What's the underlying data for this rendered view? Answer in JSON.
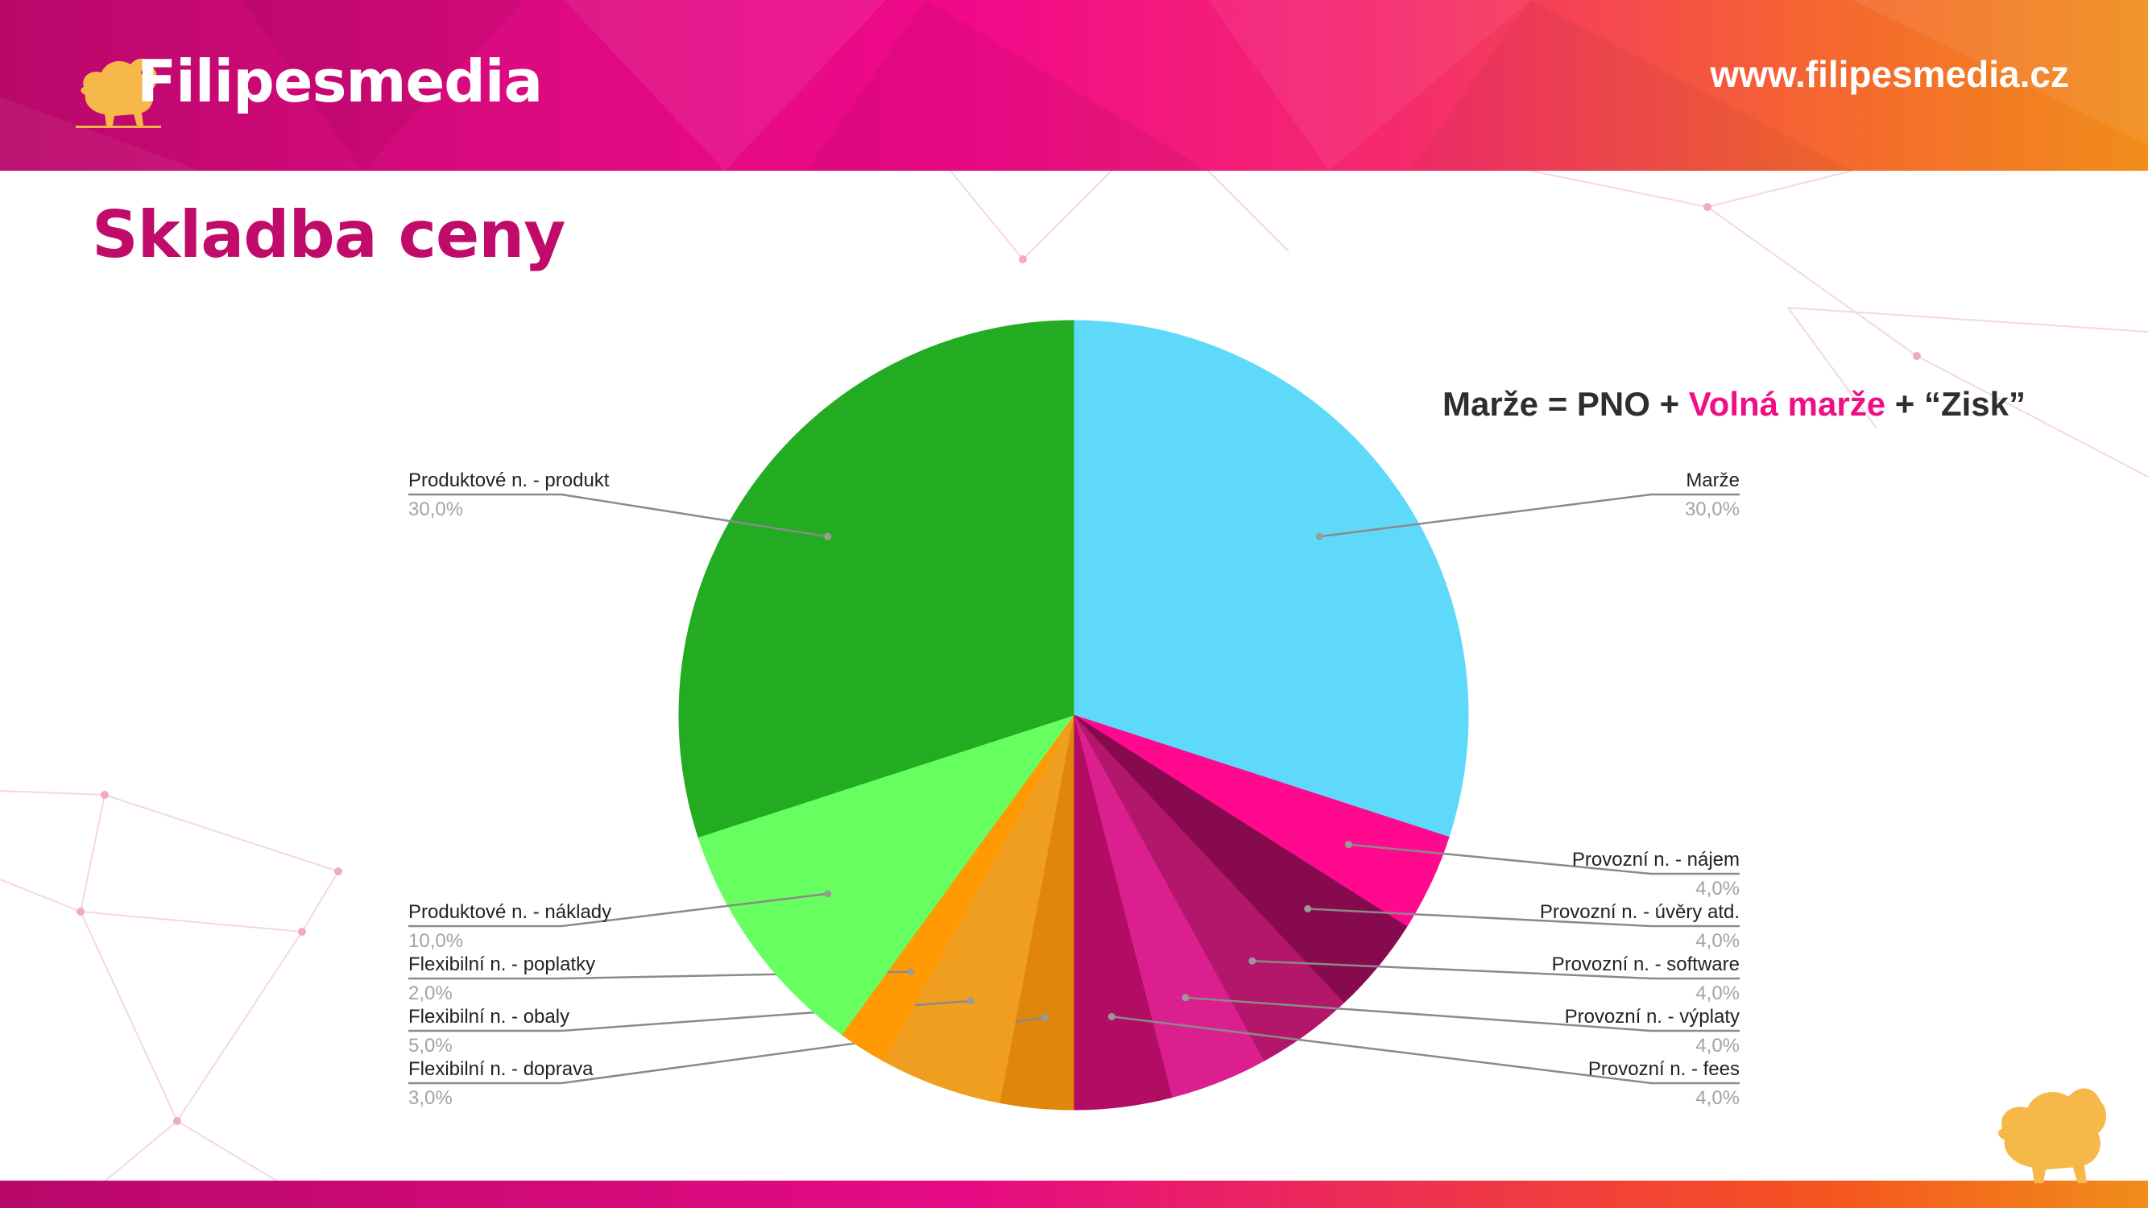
{
  "header": {
    "brand": "Filipesmedia",
    "url": "www.filipesmedia.cz",
    "logo_icon": "pomeranian-dog-icon"
  },
  "page": {
    "title": "Skladba ceny"
  },
  "formula": {
    "part1": "Marže = PNO + ",
    "part2": "Volná marže",
    "part3": " + “Zisk”",
    "highlight_color": "#ee0f86"
  },
  "corner_icon": "pomeranian-dog-icon",
  "chart_data": {
    "type": "pie",
    "start": "top, clockwise",
    "slices": [
      {
        "label": "Marže",
        "value": 30,
        "value_label": "30,0%",
        "color": "#5fd9fa"
      },
      {
        "label": "Provozní n. - nájem",
        "value": 4,
        "value_label": "4,0%",
        "color": "#ff0a8f"
      },
      {
        "label": "Provozní n. - úvěry atd.",
        "value": 4,
        "value_label": "4,0%",
        "color": "#870a4f"
      },
      {
        "label": "Provozní n. - software",
        "value": 4,
        "value_label": "4,0%",
        "color": "#b3176b"
      },
      {
        "label": "Provozní n. - výplaty",
        "value": 4,
        "value_label": "4,0%",
        "color": "#dc1f8f"
      },
      {
        "label": "Provozní n. - fees",
        "value": 4,
        "value_label": "4,0%",
        "color": "#b00d63"
      },
      {
        "label": "Flexibilní n. - doprava",
        "value": 3,
        "value_label": "3,0%",
        "color": "#e0860b"
      },
      {
        "label": "Flexibilní n. - obaly",
        "value": 5,
        "value_label": "5,0%",
        "color": "#f09e1f"
      },
      {
        "label": "Flexibilní n. - poplatky",
        "value": 2,
        "value_label": "2,0%",
        "color": "#ff9a05"
      },
      {
        "label": "Produktové n. - náklady",
        "value": 10,
        "value_label": "10,0%",
        "color": "#66ff5f"
      },
      {
        "label": "Produktové n. - produkt",
        "value": 30,
        "value_label": "30,0%",
        "color": "#23ab22"
      }
    ]
  }
}
